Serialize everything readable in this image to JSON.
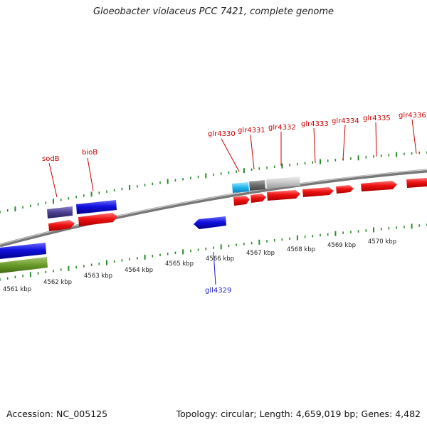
{
  "title": "Gloeobacter violaceus PCC 7421, complete genome",
  "footer": {
    "accession": "Accession: NC_005125",
    "summary": "Topology: circular; Length: 4,659,019 bp; Genes: 4,482"
  },
  "colors": {
    "forward_gene": "#ee1111",
    "reverse_gene": "#1111dd",
    "forward_label": "#cc0000",
    "reverse_label": "#1a1acc",
    "tick": "#2a8a2a",
    "backbone": "#888888"
  },
  "scale_labels": [
    "4561 kbp",
    "4562 kbp",
    "4563 kbp",
    "4564 kbp",
    "4565 kbp",
    "4566 kbp",
    "4567 kbp",
    "4568 kbp",
    "4569 kbp",
    "4570 kbp"
  ],
  "gene_labels_forward": [
    "sodB",
    "bioB",
    "glr4330",
    "glr4331",
    "glr4332",
    "glr4333",
    "glr4334",
    "glr4335",
    "glr4336"
  ],
  "gene_labels_reverse": [
    "gll4329"
  ]
}
